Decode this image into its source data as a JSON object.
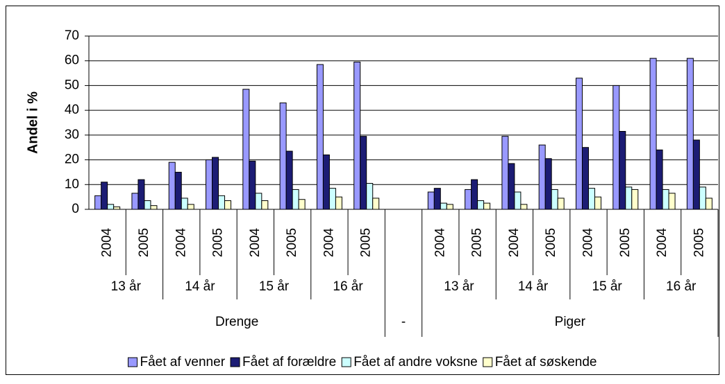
{
  "chart_data": {
    "type": "bar",
    "y_label": "Andel i %",
    "categories": [
      "2004",
      "2005",
      "2004",
      "2005",
      "2004",
      "2005",
      "2004",
      "2005",
      null,
      "2004",
      "2005",
      "2004",
      "2005",
      "2004",
      "2005",
      "2004",
      "2005"
    ],
    "groups": [
      {
        "name": "Drenge",
        "subgroups": [
          "13 år",
          "14 år",
          "15 år",
          "16 år"
        ]
      },
      {
        "name": "-",
        "subgroups": []
      },
      {
        "name": "Piger",
        "subgroups": [
          "13 år",
          "14 år",
          "15 år",
          "16 år"
        ]
      }
    ],
    "series": [
      {
        "name": "Fået af venner",
        "color": "#9999ff",
        "values": [
          5.5,
          6.5,
          19,
          20,
          48.5,
          43,
          58.5,
          59.5,
          null,
          7,
          8,
          29.5,
          26,
          53,
          50,
          61,
          61
        ]
      },
      {
        "name": "Fået af forældre",
        "color": "#1c1c74",
        "values": [
          11,
          12,
          15,
          21,
          19.5,
          23.5,
          22,
          29.5,
          null,
          8.5,
          12,
          18.5,
          20.5,
          25,
          31.5,
          24,
          28
        ]
      },
      {
        "name": "Fået af andre voksne",
        "color": "#ccffff",
        "values": [
          2,
          3.5,
          4.5,
          5.5,
          6.5,
          8,
          8.5,
          10.5,
          null,
          2.5,
          3.5,
          7,
          8,
          8.5,
          9,
          8,
          9
        ]
      },
      {
        "name": "Fået af søskende",
        "color": "#ffffcc",
        "values": [
          1,
          1.5,
          2,
          3.5,
          3.5,
          4,
          5,
          4.5,
          null,
          2,
          2.5,
          2,
          4.5,
          5,
          8,
          6.5,
          4.5
        ]
      }
    ],
    "ylim": [
      0,
      70
    ],
    "yticks": [
      0,
      10,
      20,
      30,
      40,
      50,
      60,
      70
    ],
    "grid": true,
    "legend": "bottom"
  }
}
